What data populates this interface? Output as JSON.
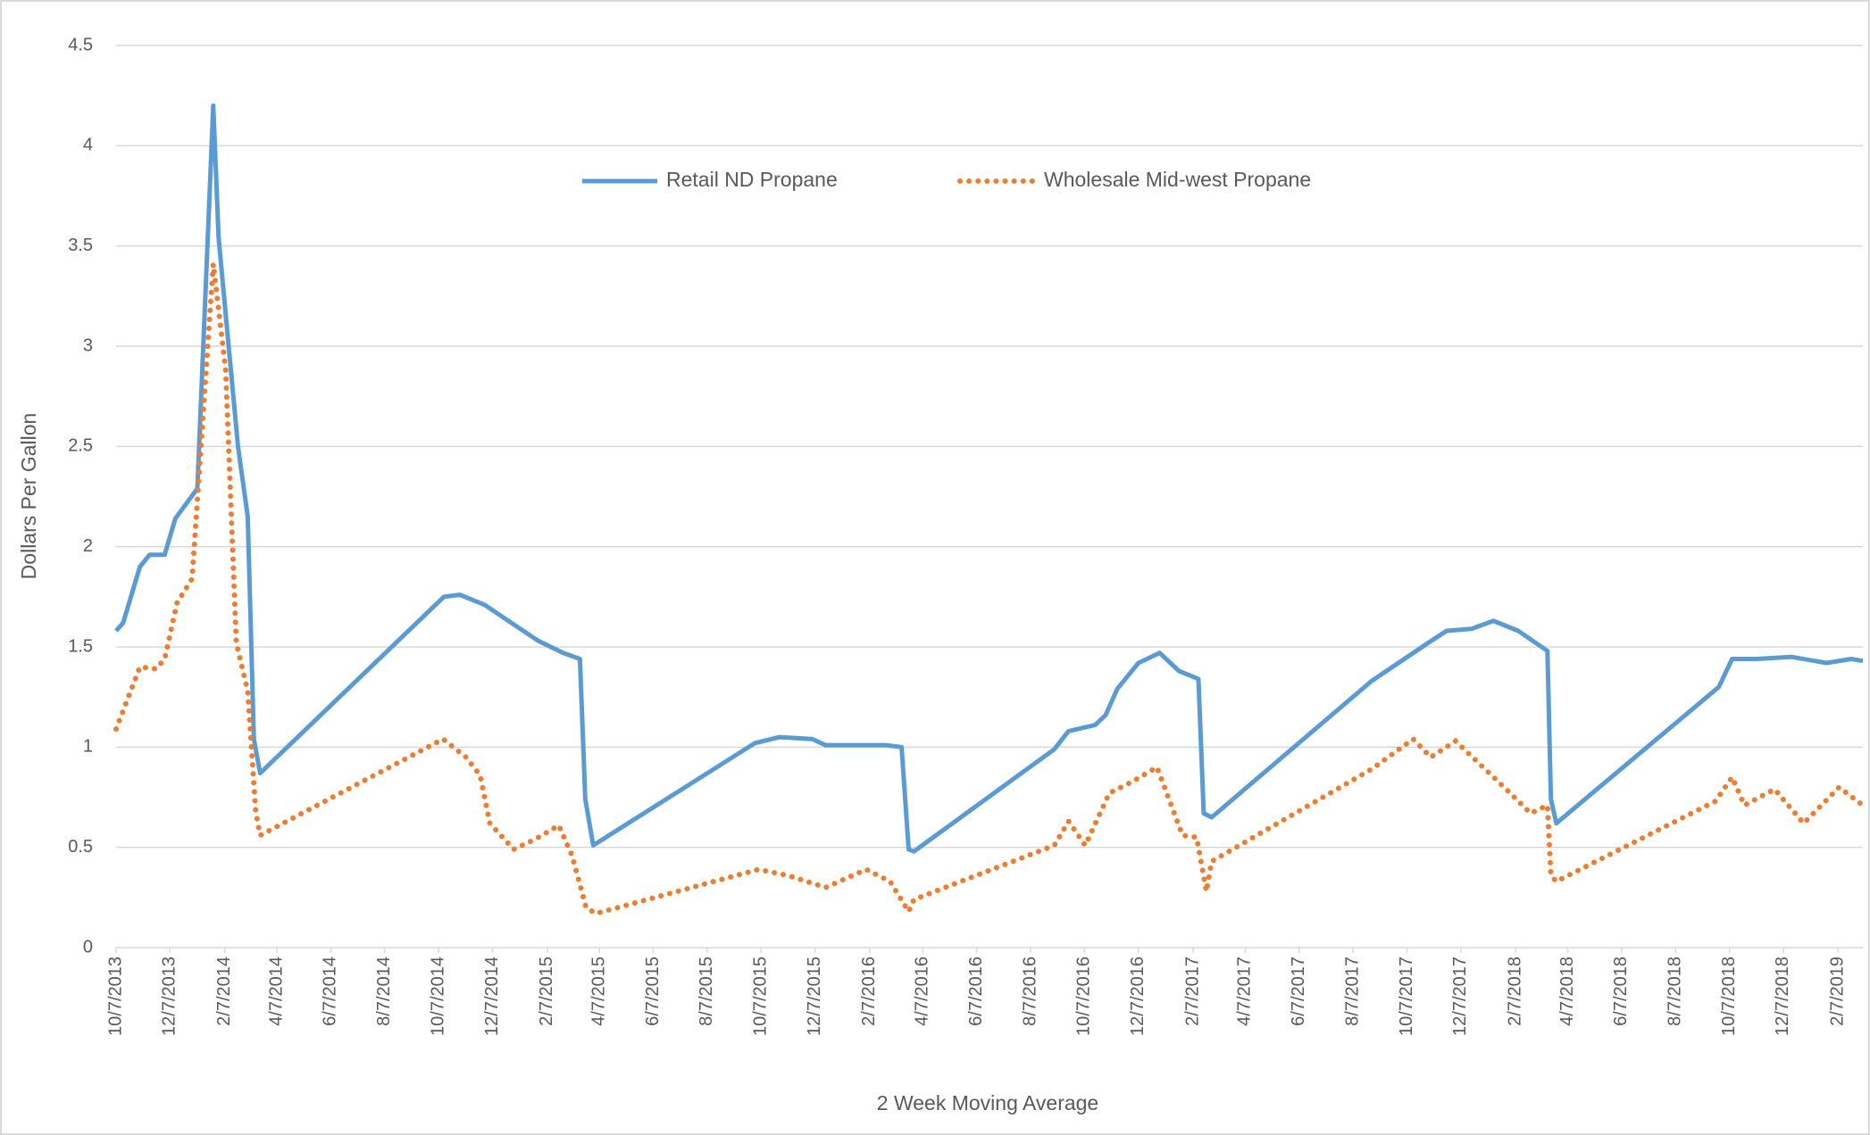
{
  "chart_data": {
    "type": "line",
    "y_label": "Dollars Per Gallon",
    "x_label": "2 Week Moving Average",
    "xlim": [
      "10/7/2013",
      "3/7/2019"
    ],
    "xticks": [
      "10/7/2013",
      "12/7/2013",
      "2/7/2014",
      "4/7/2014",
      "6/7/2014",
      "8/7/2014",
      "10/7/2014",
      "12/7/2014",
      "2/7/2015",
      "4/7/2015",
      "6/7/2015",
      "8/7/2015",
      "10/7/2015",
      "12/7/2015",
      "2/7/2016",
      "4/7/2016",
      "6/7/2016",
      "8/7/2016",
      "10/7/2016",
      "12/7/2016",
      "2/7/2017",
      "4/7/2017",
      "6/7/2017",
      "8/7/2017",
      "10/7/2017",
      "12/7/2017",
      "2/7/2018",
      "4/7/2018",
      "6/7/2018",
      "8/7/2018",
      "10/7/2018",
      "12/7/2018",
      "2/7/2019"
    ],
    "ylim": [
      0,
      4.5
    ],
    "yticks": [
      0,
      0.5,
      1,
      1.5,
      2,
      2.5,
      3,
      3.5,
      4,
      4.5
    ],
    "grid": true,
    "legend": "top",
    "series": [
      {
        "name": "Retail ND Propane",
        "color": "#5b9bd5",
        "style": "solid",
        "x": [
          "10/7/2013",
          "10/15/2013",
          "11/3/2013",
          "11/14/2013",
          "12/1/2013",
          "12/13/2013",
          "1/7/2014",
          "1/25/2014",
          "1/31/2014",
          "2/22/2014",
          "3/5/2014",
          "3/12/2014",
          "3/19/2014",
          "10/13/2014",
          "10/31/2014",
          "11/28/2014",
          "12/25/2014",
          "1/28/2015",
          "2/25/2015",
          "3/16/2015",
          "3/22/2015",
          "3/31/2015",
          "9/30/2015",
          "10/28/2015",
          "12/4/2015",
          "12/19/2015",
          "2/25/2016",
          "3/14/2016",
          "3/22/2016",
          "3/28/2016",
          "9/3/2016",
          "9/19/2016",
          "10/19/2016",
          "10/31/2016",
          "11/13/2016",
          "12/7/2016",
          "12/31/2016",
          "1/22/2017",
          "2/13/2017",
          "2/19/2017",
          "2/28/2017",
          "8/28/2017",
          "10/31/2017",
          "11/21/2017",
          "12/19/2017",
          "1/13/2018",
          "2/10/2018",
          "3/15/2018",
          "3/19/2018",
          "3/25/2018",
          "9/25/2018",
          "10/10/2018",
          "11/7/2018",
          "12/16/2018",
          "1/25/2019",
          "2/22/2019",
          "3/7/2019"
        ],
        "values": [
          1.58,
          1.62,
          1.9,
          1.96,
          1.96,
          2.14,
          2.29,
          4.2,
          3.54,
          2.5,
          2.15,
          1.04,
          0.87,
          1.75,
          1.76,
          1.71,
          1.63,
          1.53,
          1.47,
          1.44,
          0.74,
          0.51,
          1.02,
          1.05,
          1.04,
          1.01,
          1.01,
          1.0,
          0.49,
          0.48,
          0.99,
          1.08,
          1.11,
          1.16,
          1.29,
          1.42,
          1.47,
          1.38,
          1.34,
          0.67,
          0.65,
          1.33,
          1.52,
          1.58,
          1.59,
          1.63,
          1.58,
          1.48,
          0.74,
          0.62,
          1.3,
          1.44,
          1.44,
          1.45,
          1.42,
          1.44,
          1.43
        ]
      },
      {
        "name": "Wholesale Mid-west Propane",
        "color": "#ed7d31",
        "style": "dotted",
        "x": [
          "10/7/2013",
          "11/3/2013",
          "11/21/2013",
          "12/1/2013",
          "12/15/2013",
          "1/1/2014",
          "1/25/2014",
          "2/8/2014",
          "2/20/2014",
          "3/5/2014",
          "3/14/2014",
          "3/19/2014",
          "10/12/2014",
          "11/7/2014",
          "11/23/2014",
          "12/4/2014",
          "12/31/2014",
          "1/24/2015",
          "2/20/2015",
          "3/7/2015",
          "3/23/2015",
          "4/3/2015",
          "10/4/2015",
          "11/6/2015",
          "12/19/2015",
          "2/3/2016",
          "3/1/2016",
          "3/22/2016",
          "3/28/2016",
          "9/3/2016",
          "9/19/2016",
          "10/8/2016",
          "11/4/2016",
          "12/1/2016",
          "12/28/2016",
          "1/26/2017",
          "2/11/2017",
          "2/22/2017",
          "2/28/2017",
          "8/28/2017",
          "10/14/2017",
          "11/3/2017",
          "12/1/2017",
          "1/25/2018",
          "2/24/2018",
          "3/15/2018",
          "3/19/2018",
          "3/25/2018",
          "9/21/2018",
          "10/10/2018",
          "10/24/2018",
          "11/27/2018",
          "12/30/2018",
          "2/8/2019",
          "3/7/2019"
        ],
        "values": [
          1.09,
          1.4,
          1.39,
          1.44,
          1.72,
          1.84,
          3.41,
          2.88,
          1.52,
          1.28,
          0.68,
          0.56,
          1.04,
          0.95,
          0.86,
          0.62,
          0.49,
          0.54,
          0.61,
          0.46,
          0.2,
          0.17,
          0.39,
          0.36,
          0.3,
          0.39,
          0.33,
          0.18,
          0.24,
          0.51,
          0.63,
          0.51,
          0.77,
          0.83,
          0.9,
          0.56,
          0.55,
          0.28,
          0.43,
          0.89,
          1.04,
          0.95,
          1.03,
          0.8,
          0.67,
          0.71,
          0.36,
          0.33,
          0.73,
          0.85,
          0.71,
          0.79,
          0.62,
          0.8,
          0.71
        ]
      }
    ]
  }
}
